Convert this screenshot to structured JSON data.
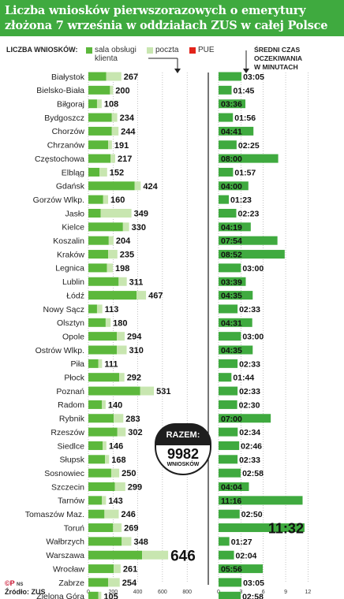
{
  "header": {
    "title_line1": "Liczba wniosków pierwszorazowych o emerytury",
    "title_line2": "złożona 7 września w oddziałach ZUS w całej Polsce"
  },
  "legend": {
    "label": "LICZBA WNIOSKÓW:",
    "items": [
      {
        "label": "sala obsługi",
        "label2": "klienta",
        "color": "#5cb83c"
      },
      {
        "label": "poczta",
        "color": "#c8e6b0"
      },
      {
        "label": "PUE",
        "color": "#e2231a"
      }
    ]
  },
  "wait_title": {
    "line1": "ŚREDNI CZAS",
    "line2": "OCZEKIWANIA",
    "line3": "W MINUTACH"
  },
  "razem": {
    "label": "RAZEM:",
    "value": "9982",
    "unit": "WNIOSKÓW"
  },
  "logo": "©P",
  "logo_small": "NS",
  "source": "Źródło: ZUS",
  "chart_data": [
    {
      "type": "bar",
      "stacked": true,
      "orientation": "horizontal",
      "title": "Liczba wniosków pierwszorazowych o emerytury złożona 7 września w oddziałach ZUS w całej Polsce",
      "xlim": [
        0,
        800
      ],
      "xticks": [
        "0",
        "200",
        "400",
        "600",
        "800"
      ],
      "categories": [
        "Białystok",
        "Bielsko-Biała",
        "Biłgoraj",
        "Bydgoszcz",
        "Chorzów",
        "Chrzanów",
        "Częstochowa",
        "Elbląg",
        "Gdańsk",
        "Gorzów Wlkp.",
        "Jasło",
        "Kielce",
        "Koszalin",
        "Kraków",
        "Legnica",
        "Lublin",
        "Łódź",
        "Nowy Sącz",
        "Olsztyn",
        "Opole",
        "Ostrów Wlkp.",
        "Piła",
        "Płock",
        "Poznań",
        "Radom",
        "Rybnik",
        "Rzeszów",
        "Siedlce",
        "Słupsk",
        "Sosnowiec",
        "Szczecin",
        "Tarnów",
        "Tomaszów Maz.",
        "Toruń",
        "Wałbrzych",
        "Warszawa",
        "Wrocław",
        "Zabrze",
        "Zielona Góra"
      ],
      "totals": [
        "267",
        "200",
        "108",
        "234",
        "244",
        "191",
        "217",
        "152",
        "424",
        "160",
        "349",
        "330",
        "204",
        "235",
        "198",
        "311",
        "467",
        "113",
        "180",
        "294",
        "310",
        "111",
        "292",
        "531",
        "140",
        "283",
        "302",
        "146",
        "168",
        "250",
        "299",
        "143",
        "246",
        "269",
        "348",
        "646",
        "261",
        "254",
        "105"
      ],
      "series": [
        {
          "name": "sala obsługi klienta",
          "values": [
            145,
            175,
            70,
            190,
            190,
            160,
            180,
            90,
            375,
            120,
            100,
            280,
            165,
            160,
            150,
            245,
            390,
            70,
            140,
            230,
            230,
            80,
            250,
            420,
            110,
            205,
            235,
            115,
            135,
            185,
            215,
            110,
            130,
            200,
            270,
            435,
            205,
            160,
            80
          ]
        },
        {
          "name": "poczta",
          "values": [
            122,
            25,
            38,
            44,
            54,
            31,
            37,
            62,
            49,
            40,
            249,
            50,
            39,
            75,
            48,
            66,
            77,
            43,
            40,
            64,
            80,
            31,
            42,
            111,
            30,
            78,
            67,
            31,
            33,
            65,
            84,
            33,
            116,
            69,
            78,
            211,
            56,
            94,
            25
          ]
        },
        {
          "name": "PUE",
          "values": [
            0,
            0,
            0,
            0,
            0,
            0,
            0,
            0,
            0,
            0,
            0,
            0,
            0,
            0,
            0,
            0,
            0,
            0,
            0,
            0,
            0,
            0,
            0,
            0,
            0,
            0,
            0,
            0,
            0,
            0,
            0,
            0,
            0,
            0,
            0,
            0,
            0,
            0,
            0
          ]
        }
      ]
    },
    {
      "type": "bar",
      "orientation": "horizontal",
      "title": "ŚREDNI CZAS OCZEKIWANIA W MINUTACH",
      "xlim": [
        0,
        12
      ],
      "xticks": [
        "0",
        "3",
        "6",
        "9",
        "12"
      ],
      "categories": [
        "Białystok",
        "Bielsko-Biała",
        "Biłgoraj",
        "Bydgoszcz",
        "Chorzów",
        "Chrzanów",
        "Częstochowa",
        "Elbląg",
        "Gdańsk",
        "Gorzów Wlkp.",
        "Jasło",
        "Kielce",
        "Koszalin",
        "Kraków",
        "Legnica",
        "Lublin",
        "Łódź",
        "Nowy Sącz",
        "Olsztyn",
        "Opole",
        "Ostrów Wlkp.",
        "Piła",
        "Płock",
        "Poznań",
        "Radom",
        "Rybnik",
        "Rzeszów",
        "Siedlce",
        "Słupsk",
        "Sosnowiec",
        "Szczecin",
        "Tarnów",
        "Tomaszów Maz.",
        "Toruń",
        "Wałbrzych",
        "Warszawa",
        "Wrocław",
        "Zabrze",
        "Zielona Góra"
      ],
      "labels": [
        "03:05",
        "01:45",
        "03:36",
        "01:56",
        "04:41",
        "02:25",
        "08:00",
        "01:57",
        "04:00",
        "01:23",
        "02:23",
        "04:19",
        "07:54",
        "08:52",
        "03:00",
        "03:39",
        "04:35",
        "02:33",
        "04:31",
        "03:00",
        "04:35",
        "02:33",
        "01:44",
        "02:33",
        "02:30",
        "07:00",
        "02:34",
        "02:46",
        "02:33",
        "02:58",
        "04:04",
        "11:16",
        "02:50",
        "11:32",
        "01:27",
        "02:04",
        "05:56",
        "03:05",
        "02:58"
      ],
      "values": [
        3.08,
        1.75,
        3.6,
        1.93,
        4.68,
        2.42,
        8.0,
        1.95,
        4.0,
        1.38,
        2.38,
        4.32,
        7.9,
        8.87,
        3.0,
        3.65,
        4.58,
        2.55,
        4.52,
        3.0,
        4.58,
        2.55,
        1.73,
        2.55,
        2.5,
        7.0,
        2.57,
        2.77,
        2.55,
        2.97,
        4.07,
        11.27,
        2.83,
        11.53,
        1.45,
        2.07,
        5.93,
        3.08,
        2.97
      ]
    }
  ]
}
